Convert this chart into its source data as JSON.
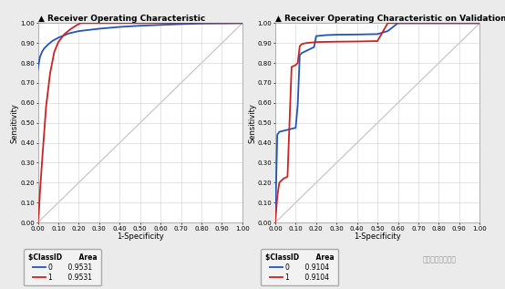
{
  "left_title": "Receiver Operating Characteristic",
  "right_title": "Receiver Operating Characteristic on Validation Data",
  "xlabel": "1-Specificity",
  "ylabel": "Sensitivity",
  "xlim": [
    0.0,
    1.0
  ],
  "ylim": [
    0.0,
    1.0
  ],
  "xticks": [
    0.0,
    0.1,
    0.2,
    0.3,
    0.4,
    0.5,
    0.6,
    0.7,
    0.8,
    0.9,
    1.0
  ],
  "yticks": [
    0.0,
    0.1,
    0.2,
    0.3,
    0.4,
    0.5,
    0.6,
    0.7,
    0.8,
    0.9,
    1.0
  ],
  "color_blue": "#2255bb",
  "color_red": "#cc2222",
  "color_diag": "#c0c0c0",
  "left_legend_class0_area": "0.9531",
  "left_legend_class1_area": "0.9531",
  "right_legend_class0_area": "0.9104",
  "right_legend_class1_area": "0.9104",
  "bg_color": "#ebebeb",
  "plot_bg_color": "#ffffff",
  "title_fontsize": 6.5,
  "axis_fontsize": 6.0,
  "tick_fontsize": 5.0,
  "legend_fontsize": 5.5,
  "left_blue_x": [
    0.0,
    0.005,
    0.01,
    0.02,
    0.03,
    0.05,
    0.07,
    0.1,
    0.15,
    0.2,
    0.3,
    0.4,
    0.5,
    0.6,
    0.7,
    0.8,
    0.9,
    1.0
  ],
  "left_blue_y": [
    0.77,
    0.8,
    0.83,
    0.855,
    0.872,
    0.893,
    0.91,
    0.927,
    0.948,
    0.96,
    0.972,
    0.981,
    0.987,
    0.991,
    0.995,
    0.998,
    0.999,
    1.0
  ],
  "left_red_x": [
    0.0,
    0.005,
    0.01,
    0.02,
    0.04,
    0.06,
    0.08,
    0.1,
    0.13,
    0.16,
    0.19,
    0.21,
    0.3,
    0.4,
    0.5,
    0.6,
    0.7,
    0.8,
    0.9,
    1.0
  ],
  "left_red_y": [
    0.0,
    0.05,
    0.15,
    0.3,
    0.58,
    0.75,
    0.855,
    0.905,
    0.945,
    0.97,
    0.99,
    1.0,
    1.0,
    1.0,
    1.0,
    1.0,
    1.0,
    1.0,
    1.0,
    1.0
  ],
  "right_blue_x": [
    0.0,
    0.01,
    0.02,
    0.04,
    0.06,
    0.08,
    0.1,
    0.11,
    0.12,
    0.13,
    0.15,
    0.17,
    0.19,
    0.2,
    0.25,
    0.3,
    0.4,
    0.5,
    0.55,
    0.6,
    0.7,
    0.8,
    0.9,
    1.0
  ],
  "right_blue_y": [
    0.0,
    0.44,
    0.455,
    0.46,
    0.465,
    0.47,
    0.475,
    0.59,
    0.84,
    0.85,
    0.86,
    0.87,
    0.88,
    0.935,
    0.94,
    0.942,
    0.943,
    0.945,
    0.96,
    1.0,
    1.0,
    1.0,
    1.0,
    1.0
  ],
  "right_red_x": [
    0.0,
    0.01,
    0.02,
    0.04,
    0.06,
    0.08,
    0.1,
    0.11,
    0.12,
    0.13,
    0.15,
    0.17,
    0.19,
    0.2,
    0.25,
    0.3,
    0.4,
    0.5,
    0.55,
    0.6,
    0.7,
    0.8,
    0.9,
    1.0
  ],
  "right_red_y": [
    0.0,
    0.13,
    0.2,
    0.22,
    0.23,
    0.78,
    0.79,
    0.8,
    0.885,
    0.895,
    0.9,
    0.902,
    0.904,
    0.905,
    0.906,
    0.907,
    0.908,
    0.91,
    1.0,
    1.0,
    1.0,
    1.0,
    1.0,
    1.0
  ],
  "watermark_text": "深度学习炼丹小组"
}
